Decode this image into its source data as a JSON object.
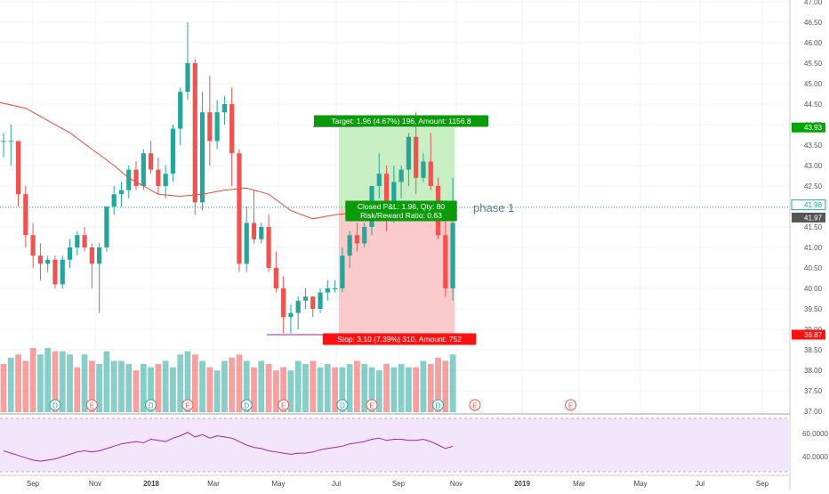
{
  "chart_data": {
    "type": "candlestick",
    "x_axis_labels": [
      "Sep",
      "Nov",
      "2018",
      "Mar",
      "May",
      "Jul",
      "Sep",
      "Nov",
      "2019",
      "Mar",
      "May",
      "Jul",
      "Sep"
    ],
    "y_ticks": [
      "47.00",
      "46.50",
      "46.00",
      "45.50",
      "45.00",
      "44.50",
      "44.00",
      "43.50",
      "43.00",
      "42.50",
      "42.00",
      "41.50",
      "41.00",
      "40.50",
      "40.00",
      "39.50",
      "39.00",
      "38.50",
      "38.00",
      "37.50",
      "37.00"
    ],
    "ylim": [
      37.0,
      47.0
    ],
    "weeks": [
      "2017-08-21",
      "2017-08-28",
      "2017-09-04",
      "2017-09-11",
      "2017-09-18",
      "2017-09-25",
      "2017-10-02",
      "2017-10-09",
      "2017-10-16",
      "2017-10-23",
      "2017-10-30",
      "2017-11-06",
      "2017-11-13",
      "2017-11-20",
      "2017-11-27",
      "2017-12-04",
      "2017-12-11",
      "2017-12-18",
      "2017-12-25",
      "2018-01-01",
      "2018-01-08",
      "2018-01-15",
      "2018-01-22",
      "2018-01-29",
      "2018-02-05",
      "2018-02-12",
      "2018-02-19",
      "2018-02-26",
      "2018-03-05",
      "2018-03-12",
      "2018-03-19",
      "2018-03-26",
      "2018-04-02",
      "2018-04-09",
      "2018-04-16",
      "2018-04-23",
      "2018-04-30",
      "2018-05-07",
      "2018-05-14",
      "2018-05-21",
      "2018-05-28",
      "2018-06-04",
      "2018-06-11",
      "2018-06-18",
      "2018-06-25",
      "2018-07-02",
      "2018-07-09",
      "2018-07-16",
      "2018-07-23",
      "2018-07-30",
      "2018-08-06",
      "2018-08-13",
      "2018-08-20",
      "2018-08-27",
      "2018-09-03",
      "2018-09-10",
      "2018-09-17",
      "2018-09-24",
      "2018-10-01",
      "2018-10-08",
      "2018-10-15",
      "2018-10-22"
    ],
    "ohlc": [
      [
        43.6,
        43.8,
        43.2,
        43.6
      ],
      [
        43.6,
        44.0,
        43.0,
        43.6
      ],
      [
        43.6,
        43.6,
        42.0,
        42.3
      ],
      [
        42.3,
        42.5,
        41.0,
        41.3
      ],
      [
        41.3,
        41.6,
        40.5,
        40.8
      ],
      [
        40.8,
        41.1,
        40.2,
        40.6
      ],
      [
        40.6,
        40.8,
        40.4,
        40.7
      ],
      [
        40.7,
        40.8,
        40.0,
        40.1
      ],
      [
        40.1,
        40.8,
        40.0,
        40.7
      ],
      [
        40.7,
        41.2,
        40.5,
        41.0
      ],
      [
        41.0,
        41.4,
        40.8,
        41.3
      ],
      [
        41.3,
        41.5,
        40.9,
        41.0
      ],
      [
        41.0,
        41.1,
        40.0,
        40.6
      ],
      [
        40.6,
        41.1,
        39.4,
        41.0
      ],
      [
        41.0,
        42.0,
        40.9,
        42.0
      ],
      [
        42.0,
        42.5,
        41.8,
        42.3
      ],
      [
        42.3,
        42.6,
        42.0,
        42.4
      ],
      [
        42.4,
        43.0,
        42.2,
        42.9
      ],
      [
        42.9,
        43.1,
        42.4,
        42.5
      ],
      [
        42.5,
        43.4,
        42.4,
        43.3
      ],
      [
        43.3,
        43.6,
        42.8,
        42.9
      ],
      [
        42.9,
        43.2,
        42.3,
        42.5
      ],
      [
        42.5,
        43.0,
        42.2,
        42.8
      ],
      [
        42.8,
        44.0,
        42.6,
        43.9
      ],
      [
        43.9,
        44.9,
        43.5,
        44.8
      ],
      [
        44.8,
        46.5,
        44.6,
        45.5
      ],
      [
        45.5,
        45.6,
        41.8,
        42.1
      ],
      [
        42.1,
        44.8,
        41.9,
        44.3
      ],
      [
        44.3,
        45.2,
        43.0,
        43.6
      ],
      [
        43.6,
        44.6,
        43.4,
        44.3
      ],
      [
        44.3,
        44.7,
        44.0,
        44.5
      ],
      [
        44.5,
        44.9,
        42.5,
        43.3
      ],
      [
        43.3,
        43.4,
        40.4,
        40.6
      ],
      [
        40.6,
        42.0,
        40.4,
        41.6
      ],
      [
        41.6,
        42.4,
        41.1,
        41.2
      ],
      [
        41.2,
        41.6,
        41.1,
        41.5
      ],
      [
        41.5,
        41.8,
        40.4,
        40.5
      ],
      [
        40.5,
        40.9,
        39.9,
        40.0
      ],
      [
        40.0,
        40.3,
        38.9,
        39.3
      ],
      [
        39.3,
        39.6,
        38.9,
        39.4
      ],
      [
        39.4,
        39.8,
        39.0,
        39.7
      ],
      [
        39.7,
        40.0,
        39.5,
        39.8
      ],
      [
        39.8,
        39.8,
        39.3,
        39.5
      ],
      [
        39.5,
        40.0,
        39.4,
        39.9
      ],
      [
        39.9,
        40.2,
        39.7,
        40.0
      ],
      [
        40.0,
        40.2,
        39.9,
        40.0
      ],
      [
        40.0,
        41.0,
        39.9,
        40.8
      ],
      [
        40.8,
        41.4,
        40.5,
        41.3
      ],
      [
        41.3,
        41.6,
        40.9,
        41.1
      ],
      [
        41.1,
        41.6,
        41.0,
        41.5
      ],
      [
        41.5,
        42.5,
        41.3,
        42.5
      ],
      [
        42.5,
        43.3,
        42.2,
        42.8
      ],
      [
        42.8,
        43.0,
        41.4,
        42.0
      ],
      [
        42.0,
        43.0,
        41.6,
        42.6
      ],
      [
        42.6,
        43.0,
        42.2,
        42.9
      ],
      [
        42.9,
        43.8,
        42.5,
        43.7
      ],
      [
        43.7,
        44.3,
        42.3,
        42.7
      ],
      [
        42.7,
        43.3,
        42.6,
        43.1
      ],
      [
        43.1,
        43.8,
        42.4,
        42.5
      ],
      [
        42.5,
        42.7,
        41.2,
        41.3
      ],
      [
        41.3,
        42.0,
        39.8,
        40.0
      ],
      [
        40.0,
        42.7,
        39.7,
        41.6
      ]
    ],
    "volume": [
      15,
      17,
      18,
      16,
      20,
      18,
      20,
      19,
      19,
      18,
      14,
      18,
      16,
      15,
      19,
      16,
      16,
      15,
      13,
      15,
      14,
      15,
      16,
      14,
      18,
      19,
      18,
      16,
      14,
      13,
      16,
      17,
      18,
      16,
      14,
      16,
      15,
      13,
      14,
      13,
      16,
      15,
      16,
      14,
      15,
      14,
      14,
      15,
      16,
      15,
      14,
      13,
      15,
      14,
      15,
      14,
      14,
      16,
      15,
      17,
      16,
      18
    ],
    "volume_up": [
      false,
      true,
      false,
      false,
      false,
      true,
      true,
      false,
      true,
      true,
      false,
      true,
      false,
      true,
      true,
      true,
      true,
      true,
      false,
      true,
      true,
      false,
      true,
      true,
      true,
      true,
      false,
      true,
      false,
      true,
      true,
      false,
      false,
      true,
      false,
      true,
      false,
      false,
      false,
      true,
      true,
      true,
      false,
      true,
      true,
      false,
      true,
      true,
      false,
      true,
      true,
      true,
      false,
      true,
      true,
      true,
      false,
      true,
      false,
      false,
      false,
      true
    ],
    "ma_line": [
      [
        -2,
        44.6
      ],
      [
        3,
        44.4
      ],
      [
        6,
        44.1
      ],
      [
        9,
        43.8
      ],
      [
        12,
        43.4
      ],
      [
        15,
        43.0
      ],
      [
        17,
        42.7
      ],
      [
        19,
        42.5
      ],
      [
        21,
        42.3
      ],
      [
        24,
        42.25
      ],
      [
        27,
        42.3
      ],
      [
        30,
        42.4
      ],
      [
        33,
        42.45
      ],
      [
        36,
        42.3
      ],
      [
        39,
        41.9
      ],
      [
        42,
        41.7
      ],
      [
        45,
        41.8
      ],
      [
        48,
        41.85
      ],
      [
        51,
        41.9
      ],
      [
        54,
        41.92
      ],
      [
        57,
        41.85
      ],
      [
        60,
        41.8
      ],
      [
        61,
        41.78
      ]
    ],
    "rsi": [
      45,
      43,
      41,
      39,
      37,
      36,
      37,
      38,
      40,
      42,
      44,
      45,
      44,
      45,
      47,
      49,
      51,
      52,
      53,
      52,
      55,
      54,
      53,
      56,
      58,
      61,
      57,
      59,
      56,
      58,
      57,
      56,
      53,
      50,
      48,
      47,
      45,
      44,
      43,
      42,
      43,
      43,
      44,
      46,
      47,
      48,
      49,
      51,
      52,
      53,
      55,
      56,
      54,
      55,
      55,
      54,
      54,
      55,
      53,
      50,
      47,
      49
    ],
    "rsi_ticks": [
      "60.0000",
      "40.0000"
    ],
    "rsi_ylim": [
      30,
      70
    ],
    "price_label": "41.98",
    "last_price_label": "41.97",
    "target_price_label": "43.93",
    "stop_price_label": "38.87",
    "long_position": {
      "entry": 41.97,
      "target": 43.93,
      "stop": 38.87,
      "start_index": 46,
      "end_index": 61,
      "target_text": "Target: 1.96 (4.67%) 196, Amount: 1156.8",
      "stop_text": "Stop: 3.10 (7.39%) 310, Amount: 752",
      "pnl_text": "Closed P&L: 1.96, Qty: 80",
      "ratio_text": "Risk/Reward Ratio: 0.63"
    },
    "annotation": "phase 1",
    "events": [
      {
        "label": "D",
        "index": 7,
        "color": "#26a69a"
      },
      {
        "label": "E",
        "index": 12,
        "color": "#ef5350"
      },
      {
        "label": "D",
        "index": 20,
        "color": "#26a69a"
      },
      {
        "label": "E",
        "index": 25,
        "color": "#ef5350"
      },
      {
        "label": "D",
        "index": 33,
        "color": "#26a69a"
      },
      {
        "label": "E",
        "index": 38,
        "color": "#ef5350"
      },
      {
        "label": "D",
        "index": 46,
        "color": "#26a69a"
      },
      {
        "label": "E",
        "index": 50,
        "color": "#ef5350"
      },
      {
        "label": "D",
        "index": 59,
        "color": "#26a69a"
      },
      {
        "label": "E",
        "index": 64,
        "color": "#ef5350"
      },
      {
        "label": "E",
        "index": 77,
        "color": "#ef5350"
      }
    ],
    "colors": {
      "up": "#26a69a",
      "down": "#ef5350",
      "ma": "#e74c3c",
      "target_zone": "#c8efc4",
      "stop_zone": "#fbcaca",
      "target_label": "#0a9a0a",
      "stop_label": "#ff1111",
      "rsi": "#9c27b0",
      "rsi_band": "#f3e5fb"
    }
  }
}
